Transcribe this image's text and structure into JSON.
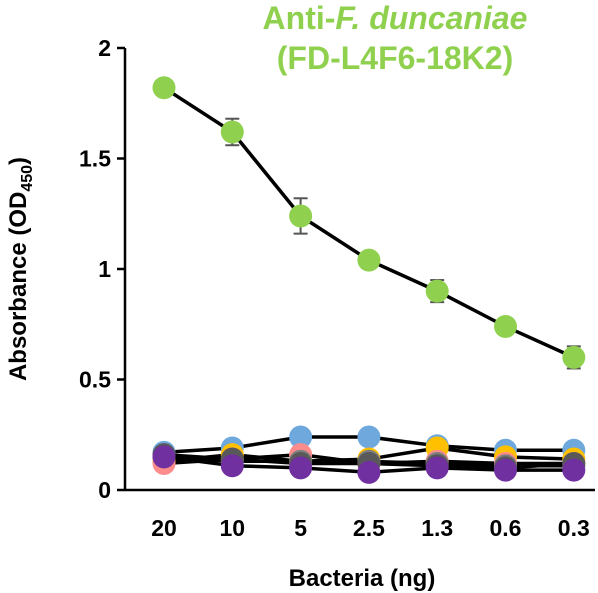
{
  "chart_data": {
    "type": "line",
    "title_prefix": "Anti-",
    "title_italic": "F. duncaniae",
    "subtitle": "(FD-L4F6-18K2)",
    "title_color": "#8fd14f",
    "xlabel": "Bacteria (ng)",
    "ylabel_main": "Absorbance (OD",
    "ylabel_sub": "450",
    "ylabel_end": ")",
    "categories": [
      "20",
      "10",
      "5",
      "2.5",
      "1.3",
      "0.6",
      "0.3"
    ],
    "ylim": [
      0,
      2
    ],
    "yticks": [
      {
        "value": 0,
        "label": "0"
      },
      {
        "value": 0.5,
        "label": "0.5"
      },
      {
        "value": 1,
        "label": "1"
      },
      {
        "value": 1.5,
        "label": "1.5"
      },
      {
        "value": 2,
        "label": "2"
      }
    ],
    "grid": false,
    "line_color": "#000000",
    "series": [
      {
        "color": "#8fd14f",
        "values": [
          1.82,
          1.62,
          1.24,
          1.04,
          0.9,
          0.74,
          0.6
        ],
        "errors": [
          0.03,
          0.06,
          0.08,
          0.02,
          0.05,
          0.02,
          0.05
        ]
      },
      {
        "color": "#6ea8dc",
        "values": [
          0.17,
          0.19,
          0.24,
          0.24,
          0.2,
          0.18,
          0.18
        ],
        "errors": [
          0.01,
          0.01,
          0.01,
          0.02,
          0.02,
          0.01,
          0.01
        ]
      },
      {
        "color": "#ffc000",
        "values": [
          0.13,
          0.16,
          0.13,
          0.14,
          0.19,
          0.15,
          0.14
        ],
        "errors": [
          0.01,
          0.01,
          0.01,
          0.01,
          0.03,
          0.01,
          0.01
        ]
      },
      {
        "color": "#ff8c8c",
        "values": [
          0.12,
          0.14,
          0.16,
          0.12,
          0.13,
          0.12,
          0.12
        ],
        "errors": [
          0.01,
          0.01,
          0.01,
          0.01,
          0.01,
          0.01,
          0.01
        ]
      },
      {
        "color": "#7f7f7f",
        "values": [
          0.15,
          0.13,
          0.13,
          0.13,
          0.12,
          0.11,
          0.11
        ],
        "errors": [
          0.01,
          0.01,
          0.01,
          0.01,
          0.01,
          0.01,
          0.01
        ]
      },
      {
        "color": "#595959",
        "values": [
          0.16,
          0.14,
          0.12,
          0.12,
          0.11,
          0.1,
          0.12
        ],
        "errors": [
          0.01,
          0.01,
          0.01,
          0.01,
          0.01,
          0.01,
          0.01
        ]
      },
      {
        "color": "#7030a0",
        "values": [
          0.15,
          0.11,
          0.1,
          0.08,
          0.1,
          0.09,
          0.09
        ],
        "errors": [
          0.01,
          0.01,
          0.01,
          0.01,
          0.01,
          0.01,
          0.01
        ]
      }
    ]
  }
}
